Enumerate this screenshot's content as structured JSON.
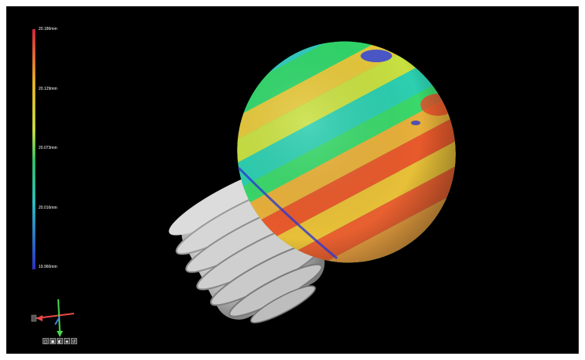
{
  "viewer": {
    "colormap": {
      "colors": [
        "#e8203c",
        "#f0b81c",
        "#d0e83c",
        "#2ec86a",
        "#28c8c8",
        "#2a2fd8"
      ],
      "labels": [
        "20.186mm",
        "20.129mm",
        "20.073mm",
        "20.016mm",
        "19.960mm"
      ]
    },
    "axis_triad": {
      "colors": {
        "x": "#e84848",
        "y": "#48d848",
        "z": "#4878e8"
      }
    },
    "view_buttons": [
      "view-front-icon",
      "view-top-icon",
      "view-side-icon",
      "view-iso-icon",
      "view-reset-icon"
    ],
    "model": {
      "name_icon": "light-bulb-3d-model"
    }
  }
}
